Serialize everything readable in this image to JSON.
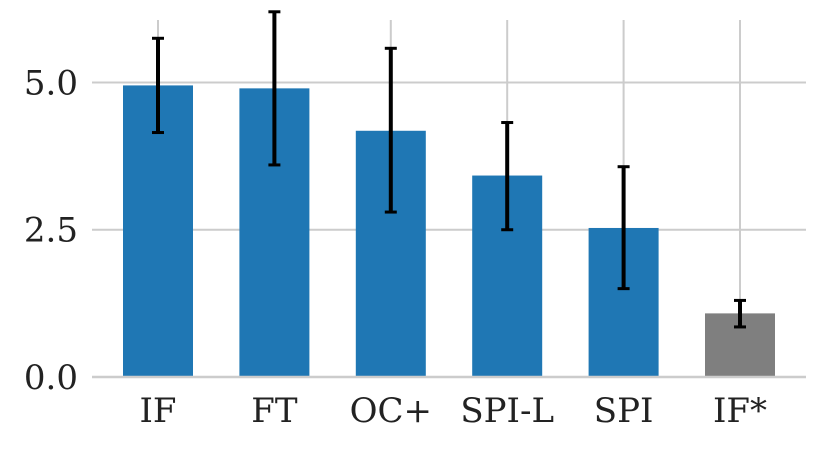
{
  "chart_data": {
    "type": "bar",
    "categories": [
      "IF",
      "FT",
      "OC+",
      "SPI-L",
      "SPI",
      "IF*"
    ],
    "values": [
      4.95,
      4.9,
      4.18,
      3.42,
      2.53,
      1.08
    ],
    "error_low": [
      4.15,
      3.6,
      2.8,
      2.5,
      1.5,
      0.85
    ],
    "error_high": [
      5.75,
      6.2,
      5.58,
      4.32,
      3.57,
      1.3
    ],
    "colors": [
      "#1f77b4",
      "#1f77b4",
      "#1f77b4",
      "#1f77b4",
      "#1f77b4",
      "#7f7f7f"
    ],
    "yticks": [
      "0.0",
      "2.5",
      "5.0"
    ],
    "ytick_values": [
      0,
      2.5,
      5.0
    ],
    "ylim": [
      0,
      6.4
    ],
    "grid": true,
    "title": "",
    "xlabel": "",
    "ylabel": ""
  }
}
